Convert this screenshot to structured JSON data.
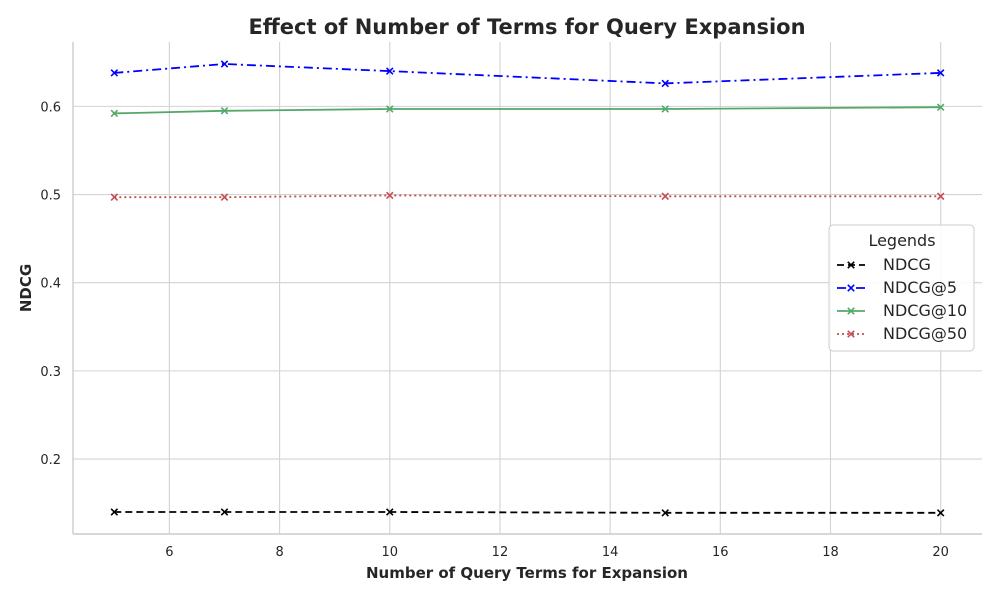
{
  "chart_data": {
    "type": "line",
    "title": "Effect of Number of Terms for Query Expansion",
    "xlabel": "Number of Query Terms for Expansion",
    "ylabel": "NDCG",
    "x": [
      5,
      7,
      10,
      15,
      20
    ],
    "xlim": [
      4.25,
      20.75
    ],
    "ylim": [
      0.115,
      0.673
    ],
    "xticks": [
      6,
      8,
      10,
      12,
      14,
      16,
      18,
      20
    ],
    "yticks": [
      0.2,
      0.3,
      0.4,
      0.5,
      0.6
    ],
    "grid": true,
    "legend": {
      "title": "Legends",
      "placement": "center-right"
    },
    "series": [
      {
        "name": "NDCG",
        "values": [
          0.14,
          0.14,
          0.14,
          0.139,
          0.139
        ],
        "color": "#000000",
        "dash": "dashed",
        "marker": "x"
      },
      {
        "name": "NDCG@5",
        "values": [
          0.638,
          0.648,
          0.64,
          0.626,
          0.638
        ],
        "color": "#0000ff",
        "dash": "dashdot",
        "marker": "x"
      },
      {
        "name": "NDCG@10",
        "values": [
          0.592,
          0.595,
          0.597,
          0.597,
          0.599
        ],
        "color": "#55a868",
        "dash": "solid",
        "marker": "x"
      },
      {
        "name": "NDCG@50",
        "values": [
          0.497,
          0.497,
          0.499,
          0.498,
          0.498
        ],
        "color": "#c44e52",
        "dash": "dotted",
        "marker": "x"
      }
    ]
  }
}
